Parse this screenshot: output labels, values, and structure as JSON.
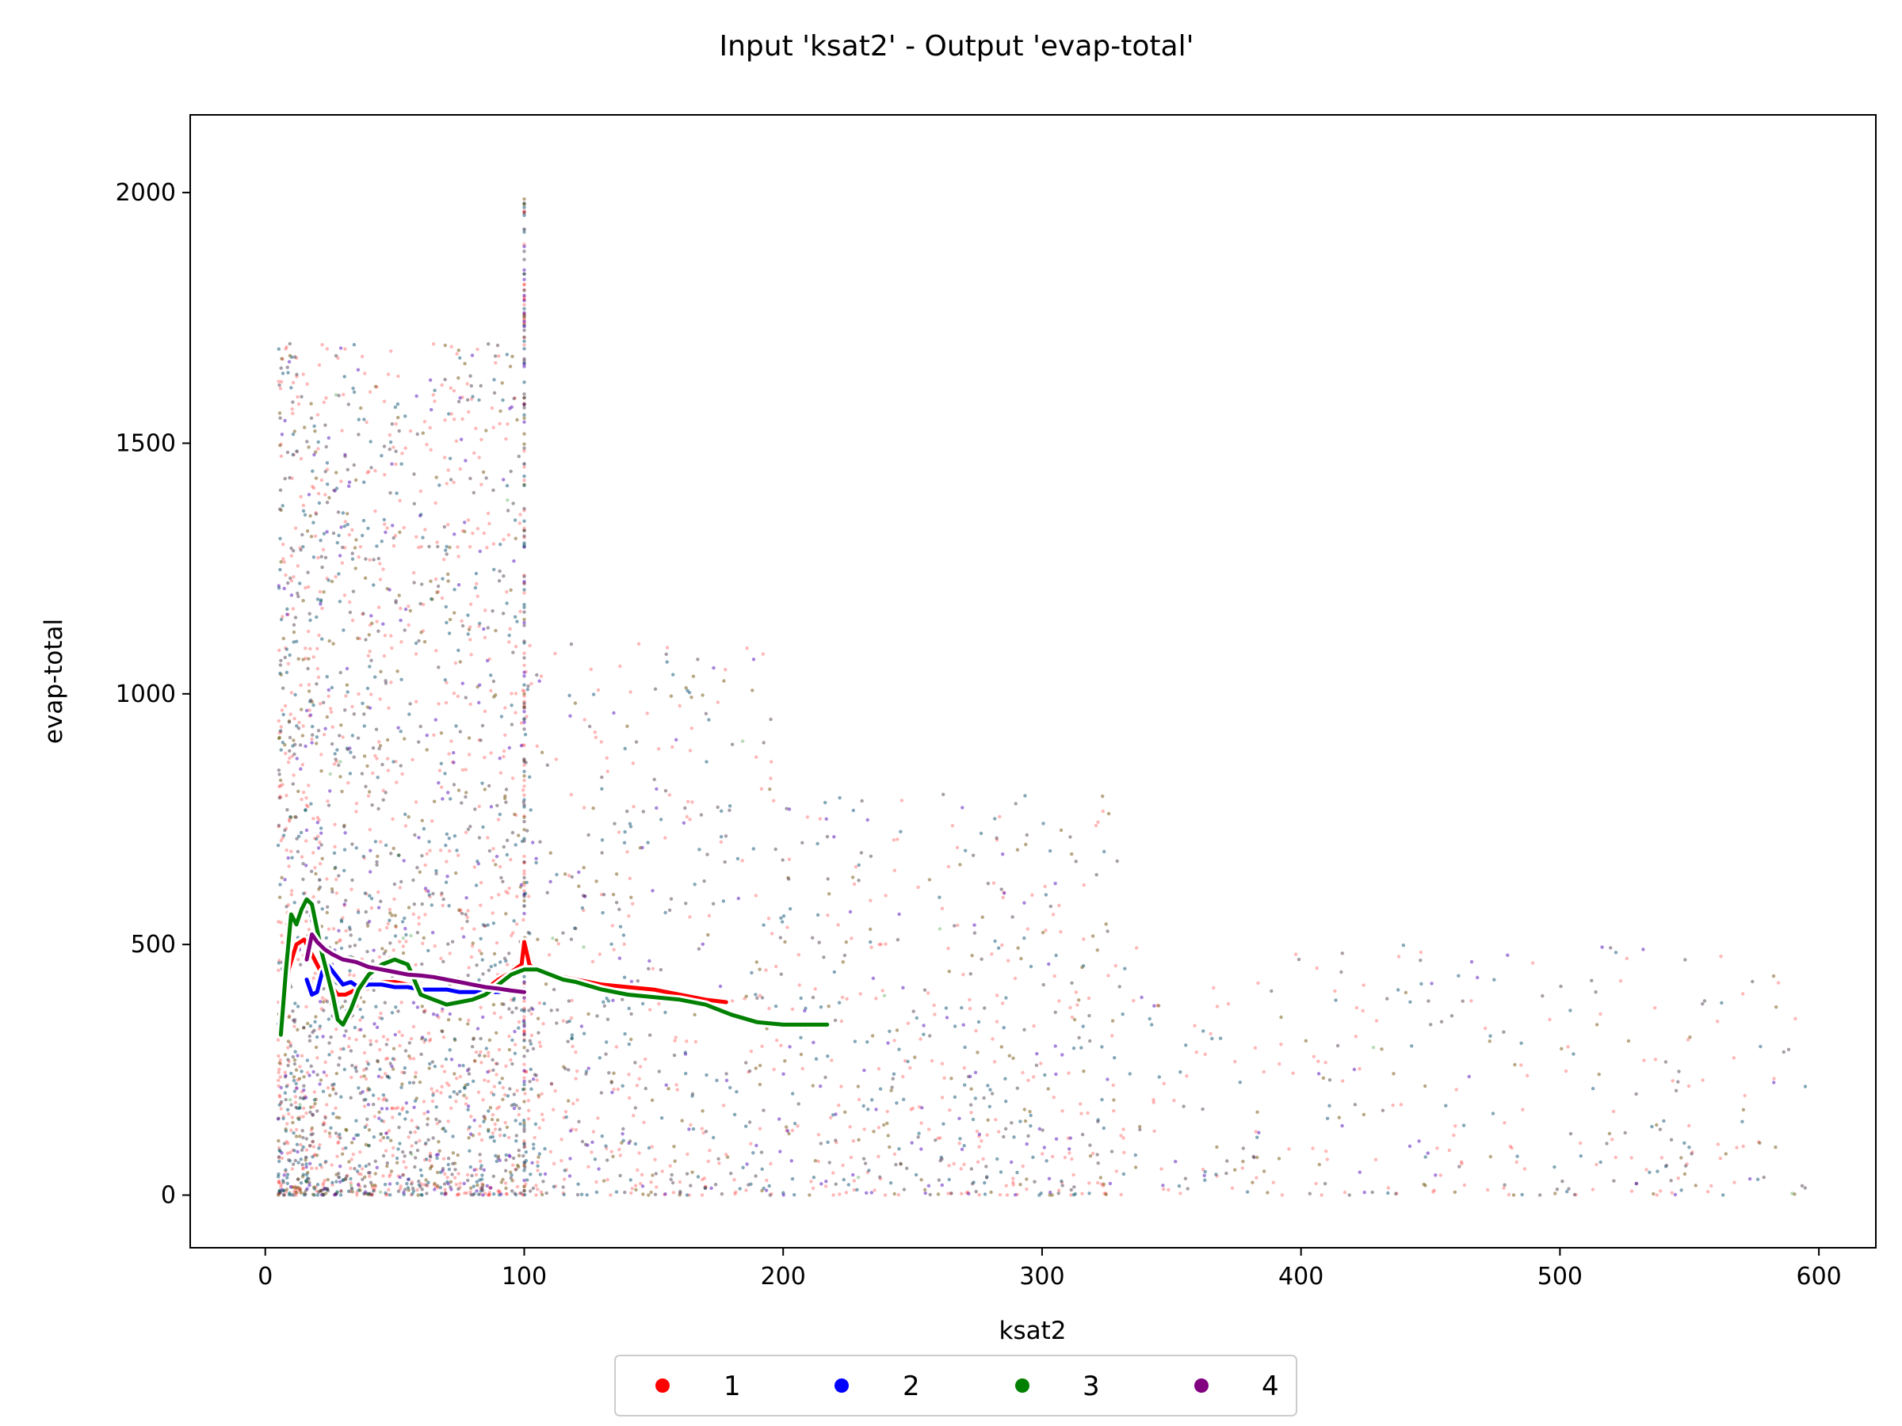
{
  "chart_data": {
    "type": "scatter",
    "title": "Input 'ksat2' - Output 'evap-total'",
    "xlabel": "ksat2",
    "ylabel": "evap-total",
    "xlim": [
      -29,
      622
    ],
    "ylim": [
      -105,
      2155
    ],
    "xticks": [
      0,
      100,
      200,
      300,
      400,
      500,
      600
    ],
    "yticks": [
      0,
      500,
      1000,
      1500,
      2000
    ],
    "grid": false,
    "legend_placement": "bottom-center",
    "colors": {
      "1": "#ff0000",
      "2": "#0000ff",
      "3": "#008000",
      "4": "#800080"
    },
    "series": [
      {
        "name": "1",
        "color": "#ff0000",
        "trend_x": [
          6,
          9,
          12,
          15,
          18,
          21,
          25,
          28,
          31,
          35,
          40,
          45,
          50,
          55,
          60,
          65,
          70,
          75,
          80,
          85,
          90,
          95,
          99,
          100,
          102,
          105,
          110,
          120,
          130,
          140,
          150,
          160,
          170,
          178
        ],
        "trend_y": [
          330,
          450,
          500,
          510,
          480,
          450,
          420,
          400,
          400,
          410,
          420,
          425,
          425,
          420,
          415,
          410,
          405,
          405,
          405,
          410,
          430,
          445,
          460,
          505,
          460,
          445,
          440,
          430,
          420,
          415,
          410,
          400,
          390,
          385
        ]
      },
      {
        "name": "2",
        "color": "#0000ff",
        "trend_x": [
          16,
          18,
          20,
          22,
          24,
          27,
          30,
          33,
          36,
          40,
          45,
          50,
          55,
          60,
          65,
          70,
          75,
          80,
          85,
          90,
          95,
          100
        ],
        "trend_y": [
          430,
          400,
          405,
          445,
          460,
          440,
          420,
          425,
          415,
          420,
          420,
          415,
          415,
          410,
          410,
          410,
          405,
          405,
          405,
          405,
          410,
          410
        ]
      },
      {
        "name": "3",
        "color": "#008000",
        "trend_x": [
          6,
          8,
          10,
          12,
          14,
          16,
          18,
          20,
          22,
          24,
          26,
          28,
          30,
          33,
          36,
          40,
          45,
          50,
          55,
          60,
          65,
          70,
          75,
          80,
          85,
          90,
          95,
          100,
          105,
          110,
          115,
          120,
          130,
          140,
          150,
          160,
          170,
          180,
          190,
          200,
          210,
          217
        ],
        "trend_y": [
          320,
          450,
          560,
          540,
          570,
          590,
          580,
          530,
          480,
          440,
          400,
          350,
          340,
          370,
          410,
          440,
          460,
          470,
          460,
          400,
          390,
          380,
          385,
          390,
          400,
          420,
          440,
          450,
          450,
          440,
          430,
          425,
          410,
          400,
          395,
          390,
          380,
          360,
          345,
          340,
          340,
          340
        ]
      },
      {
        "name": "4",
        "color": "#800080",
        "trend_x": [
          16,
          18,
          20,
          23,
          26,
          30,
          35,
          40,
          45,
          50,
          55,
          60,
          65,
          70,
          75,
          80,
          85,
          90,
          95,
          100
        ],
        "trend_y": [
          470,
          520,
          505,
          490,
          480,
          470,
          465,
          455,
          450,
          445,
          440,
          438,
          435,
          430,
          425,
          420,
          415,
          412,
          408,
          405
        ]
      }
    ]
  },
  "legend": {
    "items": [
      {
        "label": "1",
        "color": "#ff0000"
      },
      {
        "label": "2",
        "color": "#0000ff"
      },
      {
        "label": "3",
        "color": "#008000"
      },
      {
        "label": "4",
        "color": "#800080"
      }
    ]
  }
}
